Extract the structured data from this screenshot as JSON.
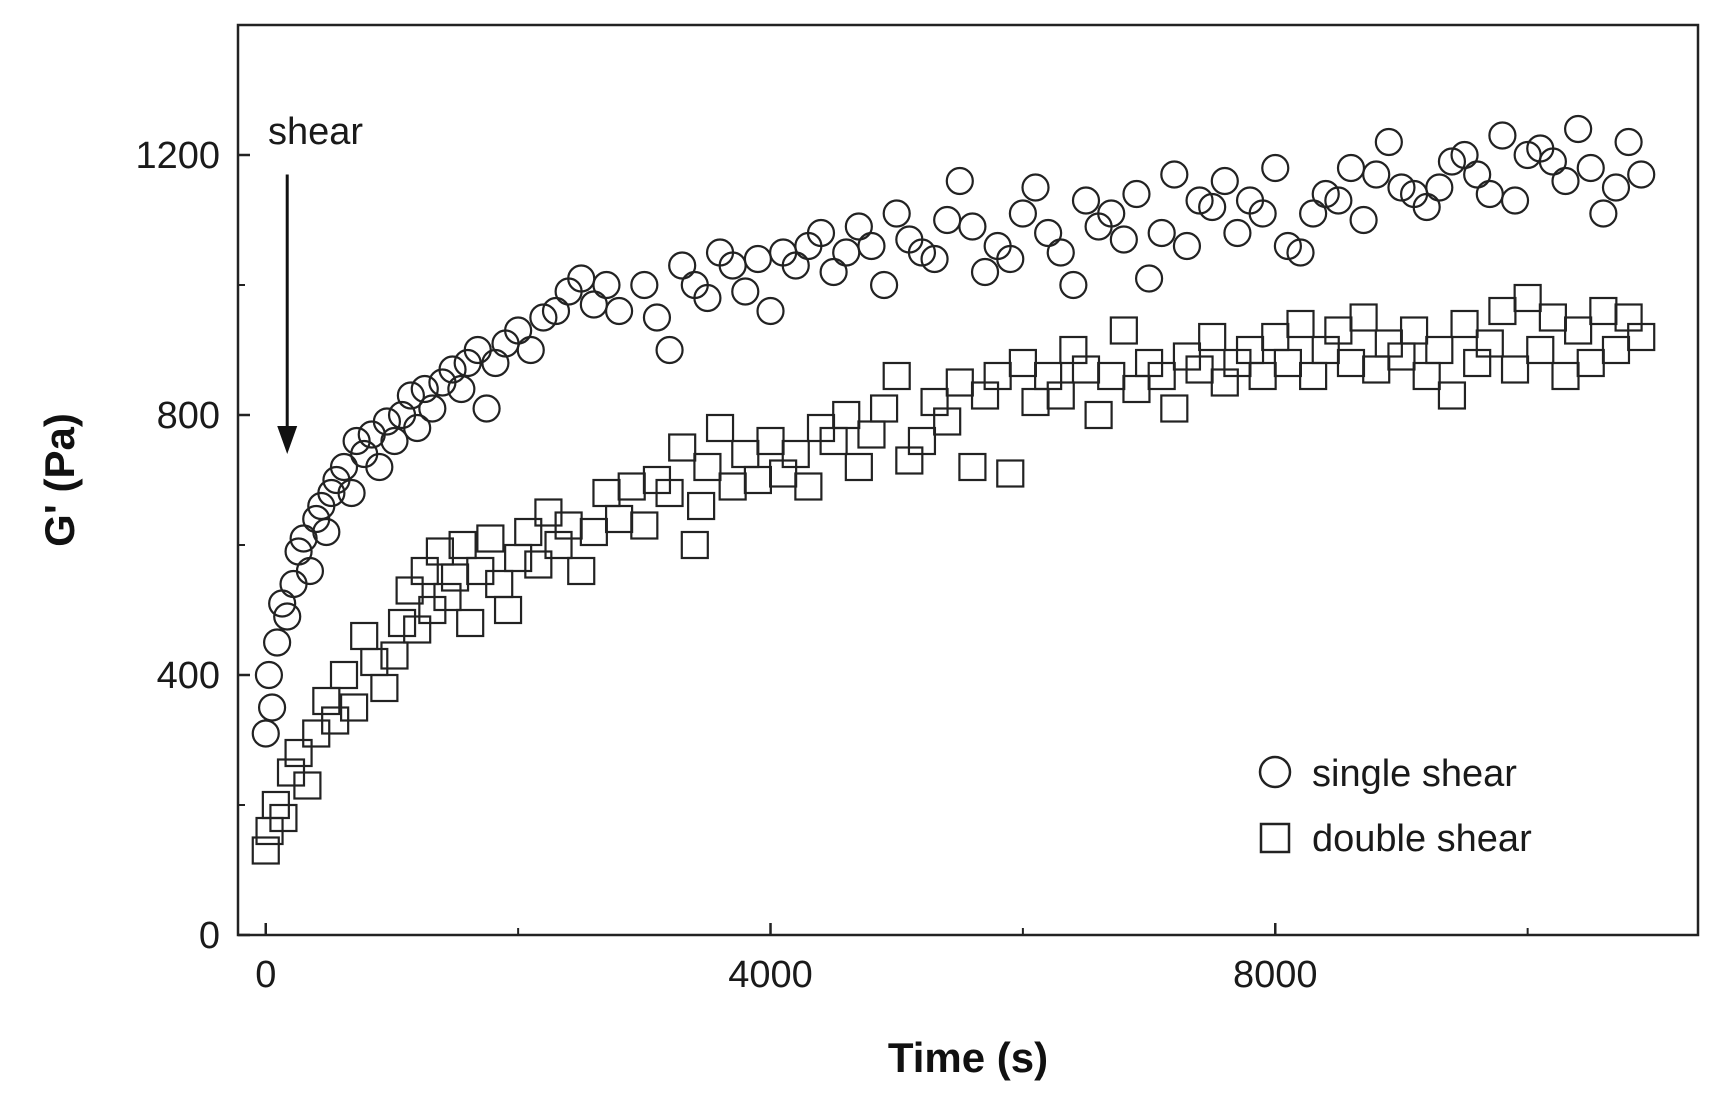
{
  "chart_data": {
    "type": "scatter",
    "title": "",
    "xlabel": "Time (s)",
    "ylabel": "G' (Pa)",
    "xlim": [
      -220,
      11350
    ],
    "ylim": [
      0,
      1400
    ],
    "xticks": [
      0,
      4000,
      8000
    ],
    "yticks": [
      0,
      400,
      800,
      1200
    ],
    "x_minor_ticks": [
      2000,
      6000,
      10000
    ],
    "y_minor_ticks": [
      200,
      600,
      1000
    ],
    "grid": false,
    "legend_position": "bottom-right",
    "annotation": {
      "text": "shear",
      "arrow_x": 170,
      "arrow_from_y": 1170,
      "arrow_to_y": 740
    },
    "series": [
      {
        "name": "single shear",
        "marker": "circle",
        "points": [
          [
            0,
            310
          ],
          [
            25,
            400
          ],
          [
            50,
            350
          ],
          [
            90,
            450
          ],
          [
            130,
            510
          ],
          [
            170,
            490
          ],
          [
            220,
            540
          ],
          [
            260,
            590
          ],
          [
            300,
            610
          ],
          [
            350,
            560
          ],
          [
            400,
            640
          ],
          [
            440,
            660
          ],
          [
            480,
            620
          ],
          [
            520,
            680
          ],
          [
            560,
            700
          ],
          [
            620,
            720
          ],
          [
            680,
            680
          ],
          [
            720,
            760
          ],
          [
            780,
            740
          ],
          [
            840,
            770
          ],
          [
            900,
            720
          ],
          [
            960,
            790
          ],
          [
            1020,
            760
          ],
          [
            1080,
            800
          ],
          [
            1150,
            830
          ],
          [
            1200,
            780
          ],
          [
            1260,
            840
          ],
          [
            1320,
            810
          ],
          [
            1400,
            850
          ],
          [
            1480,
            870
          ],
          [
            1550,
            840
          ],
          [
            1600,
            880
          ],
          [
            1680,
            900
          ],
          [
            1750,
            810
          ],
          [
            1820,
            880
          ],
          [
            1900,
            910
          ],
          [
            2000,
            930
          ],
          [
            2100,
            900
          ],
          [
            2200,
            950
          ],
          [
            2300,
            960
          ],
          [
            2400,
            990
          ],
          [
            2500,
            1010
          ],
          [
            2600,
            970
          ],
          [
            2700,
            1000
          ],
          [
            2800,
            960
          ],
          [
            3000,
            1000
          ],
          [
            3100,
            950
          ],
          [
            3200,
            900
          ],
          [
            3300,
            1030
          ],
          [
            3400,
            1000
          ],
          [
            3500,
            980
          ],
          [
            3600,
            1050
          ],
          [
            3700,
            1030
          ],
          [
            3800,
            990
          ],
          [
            3900,
            1040
          ],
          [
            4000,
            960
          ],
          [
            4100,
            1050
          ],
          [
            4200,
            1030
          ],
          [
            4300,
            1060
          ],
          [
            4400,
            1080
          ],
          [
            4500,
            1020
          ],
          [
            4600,
            1050
          ],
          [
            4700,
            1090
          ],
          [
            4800,
            1060
          ],
          [
            4900,
            1000
          ],
          [
            5000,
            1110
          ],
          [
            5100,
            1070
          ],
          [
            5200,
            1050
          ],
          [
            5300,
            1040
          ],
          [
            5400,
            1100
          ],
          [
            5500,
            1160
          ],
          [
            5600,
            1090
          ],
          [
            5700,
            1020
          ],
          [
            5800,
            1060
          ],
          [
            5900,
            1040
          ],
          [
            6000,
            1110
          ],
          [
            6100,
            1150
          ],
          [
            6200,
            1080
          ],
          [
            6300,
            1050
          ],
          [
            6400,
            1000
          ],
          [
            6500,
            1130
          ],
          [
            6600,
            1090
          ],
          [
            6700,
            1110
          ],
          [
            6800,
            1070
          ],
          [
            6900,
            1140
          ],
          [
            7000,
            1010
          ],
          [
            7100,
            1080
          ],
          [
            7200,
            1170
          ],
          [
            7300,
            1060
          ],
          [
            7400,
            1130
          ],
          [
            7500,
            1120
          ],
          [
            7600,
            1160
          ],
          [
            7700,
            1080
          ],
          [
            7800,
            1130
          ],
          [
            7900,
            1110
          ],
          [
            8000,
            1180
          ],
          [
            8100,
            1060
          ],
          [
            8200,
            1050
          ],
          [
            8300,
            1110
          ],
          [
            8400,
            1140
          ],
          [
            8500,
            1130
          ],
          [
            8600,
            1180
          ],
          [
            8700,
            1100
          ],
          [
            8800,
            1170
          ],
          [
            8900,
            1220
          ],
          [
            9000,
            1150
          ],
          [
            9100,
            1140
          ],
          [
            9200,
            1120
          ],
          [
            9300,
            1150
          ],
          [
            9400,
            1190
          ],
          [
            9500,
            1200
          ],
          [
            9600,
            1170
          ],
          [
            9700,
            1140
          ],
          [
            9800,
            1230
          ],
          [
            9900,
            1130
          ],
          [
            10000,
            1200
          ],
          [
            10100,
            1210
          ],
          [
            10200,
            1190
          ],
          [
            10300,
            1160
          ],
          [
            10400,
            1240
          ],
          [
            10500,
            1180
          ],
          [
            10600,
            1110
          ],
          [
            10700,
            1150
          ],
          [
            10800,
            1220
          ],
          [
            10900,
            1170
          ]
        ]
      },
      {
        "name": "double shear",
        "marker": "square",
        "points": [
          [
            0,
            130
          ],
          [
            30,
            160
          ],
          [
            80,
            200
          ],
          [
            140,
            180
          ],
          [
            200,
            250
          ],
          [
            260,
            280
          ],
          [
            330,
            230
          ],
          [
            400,
            310
          ],
          [
            480,
            360
          ],
          [
            550,
            330
          ],
          [
            620,
            400
          ],
          [
            700,
            350
          ],
          [
            780,
            460
          ],
          [
            860,
            420
          ],
          [
            940,
            380
          ],
          [
            1020,
            430
          ],
          [
            1080,
            480
          ],
          [
            1140,
            530
          ],
          [
            1200,
            470
          ],
          [
            1260,
            560
          ],
          [
            1320,
            500
          ],
          [
            1380,
            590
          ],
          [
            1440,
            520
          ],
          [
            1500,
            550
          ],
          [
            1560,
            600
          ],
          [
            1620,
            480
          ],
          [
            1700,
            560
          ],
          [
            1780,
            610
          ],
          [
            1850,
            540
          ],
          [
            1920,
            500
          ],
          [
            2000,
            580
          ],
          [
            2080,
            620
          ],
          [
            2160,
            570
          ],
          [
            2240,
            650
          ],
          [
            2320,
            600
          ],
          [
            2400,
            630
          ],
          [
            2500,
            560
          ],
          [
            2600,
            620
          ],
          [
            2700,
            680
          ],
          [
            2800,
            640
          ],
          [
            2900,
            690
          ],
          [
            3000,
            630
          ],
          [
            3100,
            700
          ],
          [
            3200,
            680
          ],
          [
            3300,
            750
          ],
          [
            3400,
            600
          ],
          [
            3450,
            660
          ],
          [
            3500,
            720
          ],
          [
            3600,
            780
          ],
          [
            3700,
            690
          ],
          [
            3800,
            740
          ],
          [
            3900,
            700
          ],
          [
            4000,
            760
          ],
          [
            4100,
            710
          ],
          [
            4200,
            740
          ],
          [
            4300,
            690
          ],
          [
            4400,
            780
          ],
          [
            4500,
            760
          ],
          [
            4600,
            800
          ],
          [
            4700,
            720
          ],
          [
            4800,
            770
          ],
          [
            4900,
            810
          ],
          [
            5000,
            860
          ],
          [
            5100,
            730
          ],
          [
            5200,
            760
          ],
          [
            5300,
            820
          ],
          [
            5400,
            790
          ],
          [
            5500,
            850
          ],
          [
            5600,
            720
          ],
          [
            5700,
            830
          ],
          [
            5800,
            860
          ],
          [
            5900,
            710
          ],
          [
            6000,
            880
          ],
          [
            6100,
            820
          ],
          [
            6200,
            860
          ],
          [
            6300,
            830
          ],
          [
            6400,
            900
          ],
          [
            6500,
            870
          ],
          [
            6600,
            800
          ],
          [
            6700,
            860
          ],
          [
            6800,
            930
          ],
          [
            6900,
            840
          ],
          [
            7000,
            880
          ],
          [
            7100,
            860
          ],
          [
            7200,
            810
          ],
          [
            7300,
            890
          ],
          [
            7400,
            870
          ],
          [
            7500,
            920
          ],
          [
            7600,
            850
          ],
          [
            7700,
            880
          ],
          [
            7800,
            900
          ],
          [
            7900,
            860
          ],
          [
            8000,
            920
          ],
          [
            8100,
            880
          ],
          [
            8200,
            940
          ],
          [
            8300,
            860
          ],
          [
            8400,
            900
          ],
          [
            8500,
            930
          ],
          [
            8600,
            880
          ],
          [
            8700,
            950
          ],
          [
            8800,
            870
          ],
          [
            8900,
            910
          ],
          [
            9000,
            890
          ],
          [
            9100,
            930
          ],
          [
            9200,
            860
          ],
          [
            9300,
            900
          ],
          [
            9400,
            830
          ],
          [
            9500,
            940
          ],
          [
            9600,
            880
          ],
          [
            9700,
            910
          ],
          [
            9800,
            960
          ],
          [
            9900,
            870
          ],
          [
            10000,
            980
          ],
          [
            10100,
            900
          ],
          [
            10200,
            950
          ],
          [
            10300,
            860
          ],
          [
            10400,
            930
          ],
          [
            10500,
            880
          ],
          [
            10600,
            960
          ],
          [
            10700,
            900
          ],
          [
            10800,
            950
          ],
          [
            10900,
            920
          ]
        ]
      }
    ]
  }
}
